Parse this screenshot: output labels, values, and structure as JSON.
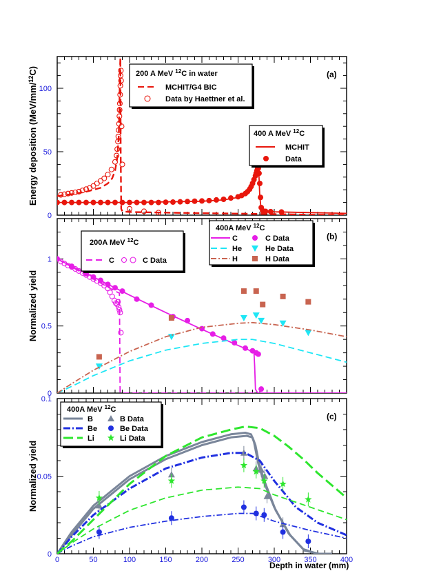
{
  "chart_data": [
    {
      "panel": "(a)",
      "type": "line",
      "ylabel": "Energy deposition (MeV/mm/12C)",
      "ylim": [
        0,
        125
      ],
      "xlim": [
        0,
        400
      ],
      "yticks": [
        0,
        50,
        100
      ],
      "ytick_labels": [
        "0",
        "50",
        "100"
      ],
      "legends": [
        {
          "title": "200 A MeV 12C in water",
          "entries": [
            "MCHIT/G4 BIC",
            "Data by Haettner et al."
          ],
          "placement": "top-center"
        },
        {
          "title": "400 A MeV 12C",
          "entries": [
            "MCHIT",
            "Data"
          ],
          "placement": "center-right"
        }
      ],
      "series": [
        {
          "name": "MCHIT/G4 BIC",
          "style": "dashed",
          "color": "#e8160c",
          "x": [
            0,
            20,
            40,
            60,
            70,
            76,
            80,
            83,
            85,
            86,
            86.8,
            87.3,
            87.8,
            88.5,
            90,
            100,
            150,
            200,
            250,
            300,
            350,
            400
          ],
          "y": [
            15,
            16.5,
            18.5,
            21.5,
            25,
            29,
            35,
            45,
            62,
            85,
            115,
            124,
            45,
            5,
            3,
            2.5,
            2,
            1.6,
            1.2,
            0.8,
            0.4,
            0.2
          ]
        },
        {
          "name": "Data by Haettner et al.",
          "style": "open-circle",
          "color": "#e8160c",
          "x": [
            5,
            10,
            15,
            20,
            25,
            30,
            35,
            40,
            45,
            50,
            55,
            60,
            65,
            70,
            75,
            80,
            82,
            83,
            84,
            84.5,
            85,
            85.5,
            86,
            86.3,
            86.6,
            87,
            87.3,
            87.6,
            88,
            88.3,
            89,
            90,
            100,
            120,
            140
          ],
          "y": [
            16,
            16.5,
            17,
            17.5,
            18,
            18.5,
            19.5,
            20.5,
            21.5,
            23,
            25,
            27,
            29,
            32,
            36,
            42,
            47,
            52,
            58,
            62,
            67,
            72,
            78,
            83,
            88,
            95,
            102,
            110,
            114,
            106,
            70,
            40,
            5,
            3,
            2
          ]
        },
        {
          "name": "MCHIT",
          "style": "solid",
          "color": "#e8160c",
          "x": [
            0,
            50,
            100,
            150,
            200,
            230,
            250,
            260,
            265,
            270,
            273,
            275,
            277,
            278,
            279,
            280,
            282,
            290,
            300,
            350,
            400
          ],
          "y": [
            10,
            10,
            10,
            10.5,
            11,
            12,
            14,
            16,
            18,
            22,
            26,
            30,
            34,
            36,
            30,
            15,
            4,
            3,
            2.6,
            2,
            1.4
          ]
        },
        {
          "name": "Data",
          "style": "filled-circle",
          "color": "#e8160c",
          "x": [
            0,
            10,
            20,
            30,
            40,
            50,
            60,
            70,
            80,
            90,
            100,
            110,
            120,
            130,
            140,
            150,
            160,
            170,
            180,
            190,
            200,
            210,
            220,
            230,
            240,
            250,
            255,
            260,
            263,
            266,
            268,
            270,
            272,
            274,
            275,
            276,
            277,
            278,
            279,
            280,
            281,
            282,
            284,
            288,
            295,
            310
          ],
          "y": [
            10,
            10,
            10,
            10,
            10,
            10,
            10,
            10,
            10,
            10,
            10,
            10,
            10,
            10,
            10,
            10.2,
            10.3,
            10.5,
            10.7,
            11,
            11.2,
            11.5,
            12,
            12.5,
            13.5,
            14.5,
            15.5,
            17,
            18.5,
            20.5,
            22.5,
            25,
            28,
            31,
            33,
            35,
            36.5,
            37,
            33,
            25,
            14,
            6,
            3.5,
            3,
            2.8,
            2.5
          ]
        }
      ]
    },
    {
      "panel": "(b)",
      "type": "line",
      "ylabel": "Normalized yield",
      "ylim": [
        0,
        1.3
      ],
      "xlim": [
        0,
        400
      ],
      "yticks": [
        0,
        0.5,
        1
      ],
      "ytick_labels": [
        "0",
        "0.5",
        "1"
      ],
      "legends": [
        {
          "title": "200A MeV 12C",
          "entries": [
            "C",
            "C Data"
          ],
          "placement": "top-left"
        },
        {
          "title": "400A MeV 12C",
          "entries": [
            "C",
            "C Data",
            "He",
            "He Data",
            "H",
            "H Data"
          ],
          "placement": "top-right"
        }
      ],
      "series": [
        {
          "name": "C",
          "energy": "200A MeV",
          "style": "dashed",
          "color": "#e61ee6",
          "x": [
            0,
            20,
            40,
            60,
            80,
            86,
            86.5,
            87,
            400
          ],
          "y": [
            1,
            0.94,
            0.88,
            0.82,
            0.76,
            0.745,
            0.4,
            0,
            0
          ]
        },
        {
          "name": "C Data",
          "energy": "200A MeV",
          "style": "open-circle",
          "color": "#e61ee6",
          "x": [
            5,
            10,
            15,
            20,
            25,
            30,
            35,
            40,
            45,
            50,
            55,
            60,
            65,
            70,
            73,
            76,
            79,
            81,
            83,
            84,
            85,
            86,
            87,
            88
          ],
          "y": [
            0.98,
            0.965,
            0.95,
            0.94,
            0.925,
            0.91,
            0.895,
            0.88,
            0.865,
            0.85,
            0.835,
            0.82,
            0.8,
            0.78,
            0.75,
            0.72,
            0.69,
            0.67,
            0.66,
            0.68,
            0.64,
            0.62,
            0.6,
            0.45
          ]
        },
        {
          "name": "C",
          "energy": "400A MeV",
          "style": "solid",
          "color": "#e61ee6",
          "x": [
            0,
            50,
            100,
            150,
            200,
            250,
            265,
            270,
            272,
            273,
            274,
            276,
            278,
            400
          ],
          "y": [
            1,
            0.865,
            0.73,
            0.6,
            0.475,
            0.355,
            0.32,
            0.305,
            0.3,
            0.2,
            0.03,
            0.01,
            0,
            0
          ]
        },
        {
          "name": "C Data",
          "energy": "400A MeV",
          "style": "filled-circle",
          "color": "#e61ee6",
          "x": [
            0,
            20,
            40,
            50,
            60,
            70,
            80,
            90,
            110,
            130,
            160,
            180,
            200,
            215,
            230,
            245,
            260,
            270,
            275,
            278,
            282
          ],
          "y": [
            1,
            0.945,
            0.89,
            0.865,
            0.84,
            0.81,
            0.785,
            0.76,
            0.7,
            0.655,
            0.57,
            0.54,
            0.48,
            0.44,
            0.41,
            0.375,
            0.335,
            0.315,
            0.3,
            0.29,
            0.03
          ]
        },
        {
          "name": "He",
          "energy": "400A MeV",
          "style": "dashed",
          "color": "#1ee6f5",
          "x": [
            0,
            20,
            50,
            100,
            150,
            200,
            250,
            270,
            300,
            350,
            400
          ],
          "y": [
            0,
            0.05,
            0.13,
            0.24,
            0.32,
            0.37,
            0.4,
            0.4,
            0.37,
            0.3,
            0.23
          ]
        },
        {
          "name": "He Data",
          "energy": "400A MeV",
          "style": "down-triangle",
          "color": "#1ee6f5",
          "x": [
            58,
            158,
            258,
            275,
            282,
            312,
            347
          ],
          "y": [
            0.2,
            0.42,
            0.56,
            0.58,
            0.54,
            0.52,
            0.45
          ]
        },
        {
          "name": "H",
          "energy": "400A MeV",
          "style": "dash-dot",
          "color": "#c86450",
          "x": [
            0,
            20,
            50,
            100,
            150,
            200,
            250,
            270,
            300,
            350,
            400
          ],
          "y": [
            0,
            0.07,
            0.17,
            0.31,
            0.42,
            0.49,
            0.52,
            0.525,
            0.51,
            0.47,
            0.42
          ]
        },
        {
          "name": "H Data",
          "energy": "400A MeV",
          "style": "filled-square",
          "color": "#c86450",
          "x": [
            58,
            158,
            258,
            275,
            284,
            312,
            347
          ],
          "y": [
            0.27,
            0.56,
            0.76,
            0.76,
            0.66,
            0.72,
            0.68
          ]
        }
      ]
    },
    {
      "panel": "(c)",
      "type": "line",
      "ylabel": "Normalized yield",
      "xlabel": "Depth in water (mm)",
      "ylim": [
        0,
        0.1
      ],
      "xlim": [
        0,
        400
      ],
      "xticks": [
        0,
        50,
        100,
        150,
        200,
        250,
        300,
        350,
        400
      ],
      "xtick_labels": [
        "0",
        "50",
        "100",
        "150",
        "200",
        "250",
        "300",
        "350",
        "400"
      ],
      "yticks": [
        0,
        0.05,
        0.1
      ],
      "ytick_labels": [
        "0",
        "0.05",
        "0.1"
      ],
      "legends": [
        {
          "title": "400A MeV 12C",
          "entries": [
            "B",
            "B Data",
            "Be",
            "Be Data",
            "Li",
            "Li Data"
          ],
          "placement": "top-left"
        }
      ],
      "series": [
        {
          "name": "B",
          "style": "solid-thick",
          "color": "#7a869a",
          "x": [
            0,
            20,
            50,
            100,
            150,
            200,
            240,
            260,
            268,
            272,
            278,
            285,
            300,
            320,
            340,
            360,
            380
          ],
          "y": [
            0,
            0.014,
            0.031,
            0.05,
            0.063,
            0.072,
            0.077,
            0.078,
            0.077,
            0.072,
            0.058,
            0.047,
            0.03,
            0.013,
            0.003,
            0,
            0
          ]
        },
        {
          "name": "B",
          "style": "solid-thick",
          "color": "#7a869a",
          "x": [
            0,
            20,
            50,
            100,
            150,
            200,
            240,
            262,
            270,
            274,
            280,
            288,
            302,
            322,
            342,
            362,
            380
          ],
          "y": [
            0,
            0.012,
            0.029,
            0.048,
            0.061,
            0.07,
            0.075,
            0.076,
            0.075,
            0.07,
            0.056,
            0.045,
            0.028,
            0.012,
            0.002,
            0,
            0
          ]
        },
        {
          "name": "B Data",
          "style": "triangle",
          "color": "#7a869a",
          "x": [
            58,
            158,
            258,
            275,
            282,
            287,
            290,
            312
          ],
          "y": [
            0.031,
            0.051,
            0.065,
            0.055,
            0.054,
            0.05,
            0.037,
            0.019
          ]
        },
        {
          "name": "Be",
          "style": "dash-dot-thick",
          "color": "#2030e0",
          "x": [
            0,
            20,
            50,
            100,
            150,
            200,
            240,
            260,
            280,
            300,
            330,
            360,
            400
          ],
          "y": [
            0,
            0.011,
            0.025,
            0.042,
            0.055,
            0.062,
            0.065,
            0.065,
            0.06,
            0.047,
            0.03,
            0.02,
            0.012
          ]
        },
        {
          "name": "Be",
          "style": "dash-dot",
          "color": "#2030e0",
          "x": [
            0,
            20,
            50,
            100,
            150,
            200,
            250,
            270,
            300,
            350,
            400
          ],
          "y": [
            0,
            0.005,
            0.011,
            0.017,
            0.021,
            0.024,
            0.026,
            0.026,
            0.021,
            0.015,
            0.01
          ]
        },
        {
          "name": "Be Data",
          "style": "filled-circle",
          "color": "#2030e0",
          "x": [
            58,
            158,
            258,
            275,
            286,
            312,
            347
          ],
          "y": [
            0.014,
            0.023,
            0.03,
            0.026,
            0.025,
            0.014,
            0.008
          ]
        },
        {
          "name": "Li",
          "style": "dashed-thick",
          "color": "#2ee62e",
          "x": [
            0,
            20,
            50,
            100,
            150,
            200,
            240,
            260,
            280,
            300,
            320,
            340,
            360,
            380,
            400
          ],
          "y": [
            0,
            0.008,
            0.022,
            0.045,
            0.063,
            0.075,
            0.08,
            0.082,
            0.081,
            0.076,
            0.069,
            0.061,
            0.052,
            0.044,
            0.036
          ]
        },
        {
          "name": "Li",
          "style": "dashed",
          "color": "#2ee62e",
          "x": [
            0,
            20,
            50,
            100,
            150,
            200,
            250,
            280,
            300,
            350,
            400
          ],
          "y": [
            0,
            0.007,
            0.016,
            0.028,
            0.036,
            0.041,
            0.043,
            0.042,
            0.038,
            0.03,
            0.022
          ]
        },
        {
          "name": "Li Data",
          "style": "star",
          "color": "#2ee62e",
          "x": [
            58,
            158,
            258,
            275,
            286,
            312,
            347
          ],
          "y": [
            0.036,
            0.047,
            0.057,
            0.053,
            0.047,
            0.045,
            0.035
          ]
        }
      ]
    }
  ]
}
